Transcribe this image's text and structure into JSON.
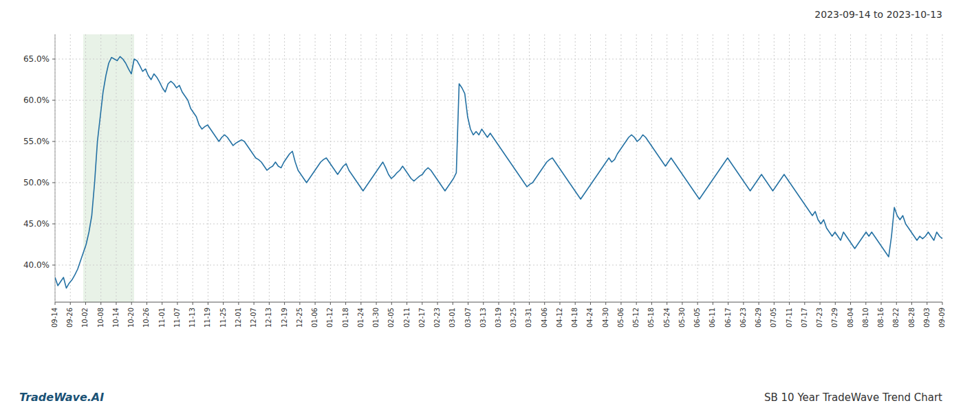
{
  "chart_data": {
    "type": "line",
    "title": "2023-09-14 to 2023-10-13",
    "annotations": [
      "TradeWave.AI",
      "SB 10 Year TradeWave Trend Chart"
    ],
    "color": "#2471a3",
    "grid": true,
    "highlight": {
      "start": 10,
      "end": 28,
      "color": "#d5e8d4"
    },
    "ylim": [
      35.5,
      68.0
    ],
    "yticks": [
      {
        "value": 40.0,
        "label": "40.0%"
      },
      {
        "value": 45.0,
        "label": "45.0%"
      },
      {
        "value": 50.0,
        "label": "50.0%"
      },
      {
        "value": 55.0,
        "label": "55.0%"
      },
      {
        "value": 60.0,
        "label": "60.0%"
      },
      {
        "value": 65.0,
        "label": "65.0%"
      }
    ],
    "xlim": [
      0,
      314
    ],
    "xticks": [
      {
        "value": 0,
        "label": "09-14"
      },
      {
        "value": 5.4138,
        "label": "09-26"
      },
      {
        "value": 10.8276,
        "label": "10-02"
      },
      {
        "value": 16.2414,
        "label": "10-08"
      },
      {
        "value": 21.6552,
        "label": "10-14"
      },
      {
        "value": 27.069,
        "label": "10-20"
      },
      {
        "value": 32.4828,
        "label": "10-26"
      },
      {
        "value": 37.8966,
        "label": "11-01"
      },
      {
        "value": 43.3103,
        "label": "11-07"
      },
      {
        "value": 48.7241,
        "label": "11-13"
      },
      {
        "value": 54.1379,
        "label": "11-19"
      },
      {
        "value": 59.5517,
        "label": "11-25"
      },
      {
        "value": 64.9655,
        "label": "12-01"
      },
      {
        "value": 70.3793,
        "label": "12-07"
      },
      {
        "value": 75.7931,
        "label": "12-13"
      },
      {
        "value": 81.2069,
        "label": "12-19"
      },
      {
        "value": 86.6207,
        "label": "12-25"
      },
      {
        "value": 92.0345,
        "label": "01-06"
      },
      {
        "value": 97.4483,
        "label": "01-12"
      },
      {
        "value": 102.8621,
        "label": "01-18"
      },
      {
        "value": 108.2759,
        "label": "01-24"
      },
      {
        "value": 113.6897,
        "label": "01-30"
      },
      {
        "value": 119.1034,
        "label": "02-05"
      },
      {
        "value": 124.5172,
        "label": "02-11"
      },
      {
        "value": 129.931,
        "label": "02-17"
      },
      {
        "value": 135.3448,
        "label": "02-23"
      },
      {
        "value": 140.7586,
        "label": "03-01"
      },
      {
        "value": 146.1724,
        "label": "03-07"
      },
      {
        "value": 151.5862,
        "label": "03-13"
      },
      {
        "value": 157,
        "label": "03-19"
      },
      {
        "value": 162.4138,
        "label": "03-25"
      },
      {
        "value": 167.8276,
        "label": "03-31"
      },
      {
        "value": 173.2414,
        "label": "04-06"
      },
      {
        "value": 178.6552,
        "label": "04-12"
      },
      {
        "value": 184.069,
        "label": "04-18"
      },
      {
        "value": 189.4828,
        "label": "04-24"
      },
      {
        "value": 194.8966,
        "label": "04-30"
      },
      {
        "value": 200.3103,
        "label": "05-06"
      },
      {
        "value": 205.7241,
        "label": "05-12"
      },
      {
        "value": 211.1379,
        "label": "05-18"
      },
      {
        "value": 216.5517,
        "label": "05-24"
      },
      {
        "value": 221.9655,
        "label": "05-30"
      },
      {
        "value": 227.3793,
        "label": "06-05"
      },
      {
        "value": 232.7931,
        "label": "06-11"
      },
      {
        "value": 238.2069,
        "label": "06-17"
      },
      {
        "value": 243.6207,
        "label": "06-23"
      },
      {
        "value": 249.0345,
        "label": "06-29"
      },
      {
        "value": 254.4483,
        "label": "07-05"
      },
      {
        "value": 259.8621,
        "label": "07-11"
      },
      {
        "value": 265.2759,
        "label": "07-17"
      },
      {
        "value": 270.6897,
        "label": "07-23"
      },
      {
        "value": 276.1034,
        "label": "07-29"
      },
      {
        "value": 281.5172,
        "label": "08-04"
      },
      {
        "value": 286.931,
        "label": "08-10"
      },
      {
        "value": 292.3448,
        "label": "08-16"
      },
      {
        "value": 297.7586,
        "label": "08-22"
      },
      {
        "value": 303.1724,
        "label": "08-28"
      },
      {
        "value": 308.5862,
        "label": "09-03"
      },
      {
        "value": 314,
        "label": "09-09"
      }
    ],
    "values": [
      38.5,
      37.5,
      38.0,
      38.5,
      37.2,
      37.8,
      38.2,
      38.8,
      39.5,
      40.5,
      41.5,
      42.5,
      44.0,
      46.0,
      50.0,
      55.0,
      58.0,
      61.0,
      63.0,
      64.5,
      65.2,
      65.0,
      64.8,
      65.3,
      65.0,
      64.5,
      63.8,
      63.2,
      65.0,
      64.8,
      64.2,
      63.5,
      63.8,
      63.0,
      62.5,
      63.2,
      62.8,
      62.2,
      61.5,
      61.0,
      62.0,
      62.3,
      62.0,
      61.5,
      61.8,
      61.0,
      60.5,
      60.0,
      59.0,
      58.5,
      58.0,
      57.0,
      56.5,
      56.8,
      57.0,
      56.5,
      56.0,
      55.5,
      55.0,
      55.5,
      55.8,
      55.5,
      55.0,
      54.5,
      54.8,
      55.0,
      55.2,
      55.0,
      54.5,
      54.0,
      53.5,
      53.0,
      52.8,
      52.5,
      52.0,
      51.5,
      51.8,
      52.0,
      52.5,
      52.0,
      51.8,
      52.5,
      53.0,
      53.5,
      53.8,
      52.5,
      51.5,
      51.0,
      50.5,
      50.0,
      50.5,
      51.0,
      51.5,
      52.0,
      52.5,
      52.8,
      53.0,
      52.5,
      52.0,
      51.5,
      51.0,
      51.5,
      52.0,
      52.3,
      51.5,
      51.0,
      50.5,
      50.0,
      49.5,
      49.0,
      49.5,
      50.0,
      50.5,
      51.0,
      51.5,
      52.0,
      52.5,
      51.8,
      51.0,
      50.5,
      50.8,
      51.2,
      51.5,
      52.0,
      51.5,
      51.0,
      50.5,
      50.2,
      50.5,
      50.8,
      51.0,
      51.5,
      51.8,
      51.5,
      51.0,
      50.5,
      50.0,
      49.5,
      49.0,
      49.5,
      50.0,
      50.5,
      51.2,
      62.0,
      61.5,
      60.8,
      58.0,
      56.5,
      55.8,
      56.2,
      55.8,
      56.5,
      56.0,
      55.5,
      56.0,
      55.5,
      55.0,
      54.5,
      54.0,
      53.5,
      53.0,
      52.5,
      52.0,
      51.5,
      51.0,
      50.5,
      50.0,
      49.5,
      49.8,
      50.0,
      50.5,
      51.0,
      51.5,
      52.0,
      52.5,
      52.8,
      53.0,
      52.5,
      52.0,
      51.5,
      51.0,
      50.5,
      50.0,
      49.5,
      49.0,
      48.5,
      48.0,
      48.5,
      49.0,
      49.5,
      50.0,
      50.5,
      51.0,
      51.5,
      52.0,
      52.5,
      53.0,
      52.5,
      52.8,
      53.5,
      54.0,
      54.5,
      55.0,
      55.5,
      55.8,
      55.5,
      55.0,
      55.3,
      55.8,
      55.5,
      55.0,
      54.5,
      54.0,
      53.5,
      53.0,
      52.5,
      52.0,
      52.5,
      53.0,
      52.5,
      52.0,
      51.5,
      51.0,
      50.5,
      50.0,
      49.5,
      49.0,
      48.5,
      48.0,
      48.5,
      49.0,
      49.5,
      50.0,
      50.5,
      51.0,
      51.5,
      52.0,
      52.5,
      53.0,
      52.5,
      52.0,
      51.5,
      51.0,
      50.5,
      50.0,
      49.5,
      49.0,
      49.5,
      50.0,
      50.5,
      51.0,
      50.5,
      50.0,
      49.5,
      49.0,
      49.5,
      50.0,
      50.5,
      51.0,
      50.5,
      50.0,
      49.5,
      49.0,
      48.5,
      48.0,
      47.5,
      47.0,
      46.5,
      46.0,
      46.5,
      45.5,
      45.0,
      45.5,
      44.5,
      44.0,
      43.5,
      44.0,
      43.5,
      43.0,
      44.0,
      43.5,
      43.0,
      42.5,
      42.0,
      42.5,
      43.0,
      43.5,
      44.0,
      43.5,
      44.0,
      43.5,
      43.0,
      42.5,
      42.0,
      41.5,
      41.0,
      43.5,
      47.0,
      46.0,
      45.5,
      46.0,
      45.0,
      44.5,
      44.0,
      43.5,
      43.0,
      43.5,
      43.2,
      43.5,
      44.0,
      43.5,
      43.0,
      44.0,
      43.5,
      43.2
    ]
  }
}
